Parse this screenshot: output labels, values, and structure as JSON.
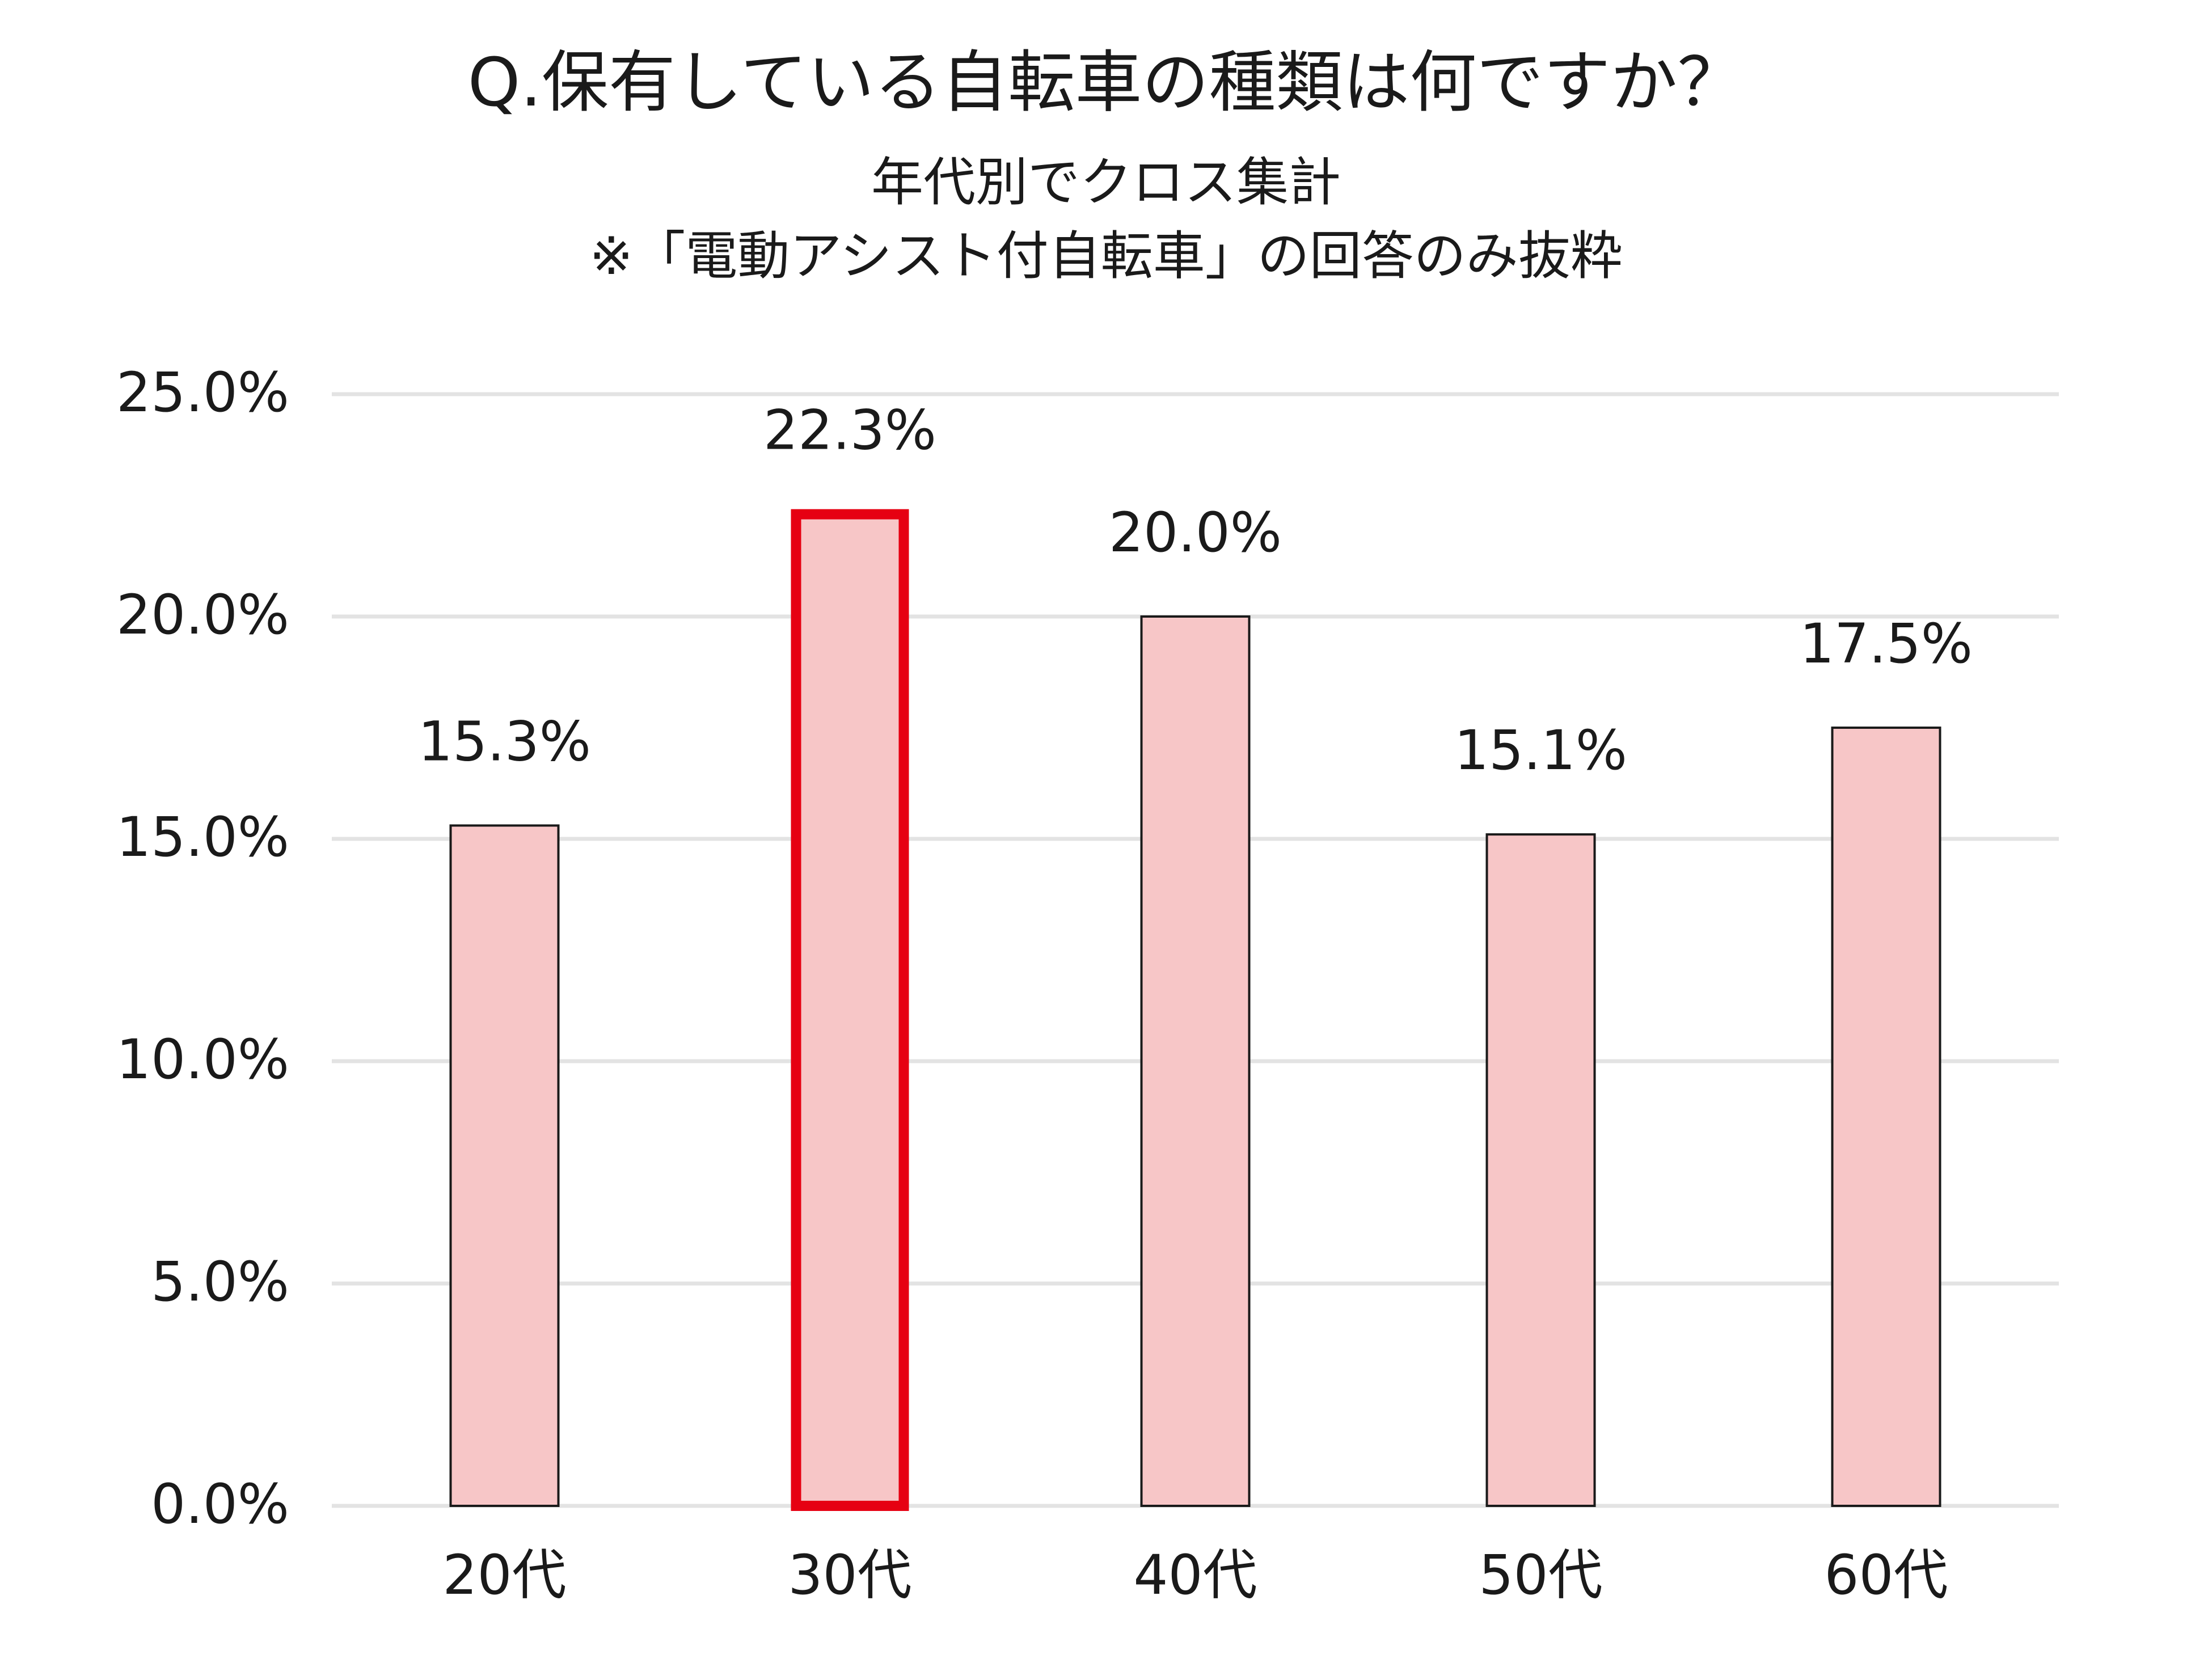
{
  "chart_data": {
    "type": "bar",
    "title": "Q.保有している自転車の種類は何ですか？",
    "subtitle_lines": [
      "年代別でクロス集計",
      "※「電動アシスト付自転車」の回答のみ抜粋"
    ],
    "categories": [
      "20代",
      "30代",
      "40代",
      "50代",
      "60代"
    ],
    "values": [
      15.3,
      22.3,
      20.0,
      15.1,
      17.5
    ],
    "value_labels": [
      "15.3%",
      "22.3%",
      "20.0%",
      "15.1%",
      "17.5%"
    ],
    "highlight_index": 1,
    "xlabel": "",
    "ylabel": "",
    "ylim": [
      0,
      25
    ],
    "yticks": [
      0,
      5,
      10,
      15,
      20,
      25
    ],
    "ytick_labels": [
      "0.0%",
      "5.0%",
      "10.0%",
      "15.0%",
      "20.0%",
      "25.0%"
    ],
    "grid": true,
    "legend": "none",
    "colors": {
      "bar_fill": "#f7c6c7",
      "bar_stroke": "#1a1a1a",
      "highlight_stroke": "#e60012",
      "grid": "#e3e3e3",
      "text": "#1a1a1a"
    }
  }
}
